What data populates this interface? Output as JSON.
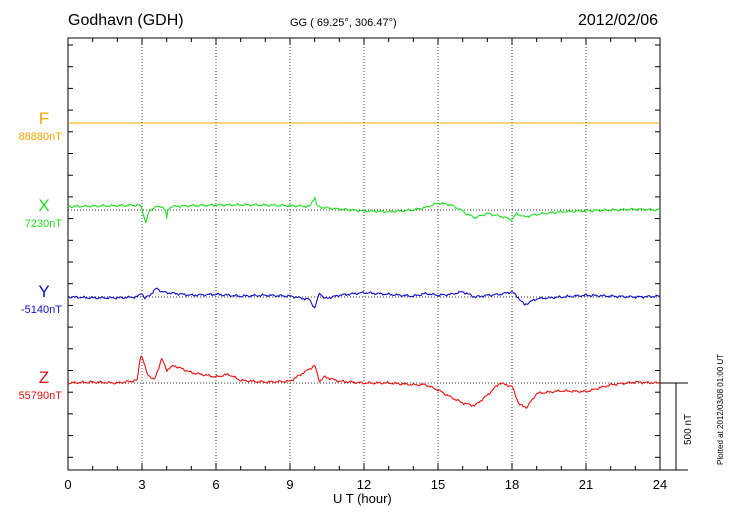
{
  "header": {
    "station": "Godhavn (GDH)",
    "coords": "GG ( 69.25°, 306.47°)",
    "date": "2012/02/06"
  },
  "footer": {
    "plotted": "Plotted at 2012/03/08 01:00 UT"
  },
  "colors": {
    "F": "#f5a300",
    "X": "#22dd22",
    "Y": "#1010cc",
    "Z": "#ee1111"
  },
  "chart_data": {
    "type": "line",
    "title": "Godhavn (GDH)",
    "xlabel": "U T (hour)",
    "xlim": [
      0,
      24
    ],
    "xticks": [
      "0",
      "3",
      "6",
      "9",
      "12",
      "15",
      "18",
      "21",
      "24"
    ],
    "grid": "vertical dotted at each 3 hours",
    "scale_bar": "500 nT",
    "series": [
      {
        "name": "F",
        "baseline_label": "88880nT",
        "x": [
          0,
          24
        ],
        "y": [
          0,
          0
        ]
      },
      {
        "name": "X",
        "baseline_label": "7230nT",
        "x": [
          0,
          1,
          2,
          2.9,
          3.0,
          3.05,
          3.15,
          3.3,
          3.5,
          3.8,
          3.95,
          4.0,
          4.05,
          4.2,
          5,
          6,
          7,
          8,
          9,
          9.8,
          10.0,
          10.1,
          10.3,
          11,
          12,
          13,
          14,
          14.5,
          15,
          15.5,
          15.8,
          16.2,
          16.5,
          17,
          17.5,
          18,
          18.2,
          18.5,
          19,
          20,
          21,
          22,
          23,
          24
        ],
        "y": [
          20,
          22,
          25,
          28,
          10,
          -20,
          -75,
          -5,
          15,
          22,
          -5,
          -50,
          5,
          20,
          25,
          28,
          30,
          28,
          25,
          20,
          75,
          20,
          15,
          5,
          -5,
          -10,
          0,
          15,
          40,
          30,
          10,
          -25,
          -45,
          -20,
          -35,
          -55,
          -20,
          -40,
          -25,
          -10,
          -5,
          0,
          5,
          0
        ]
      },
      {
        "name": "Y",
        "baseline_label": "-5140nT",
        "x": [
          0,
          1,
          2,
          2.8,
          3.0,
          3.1,
          3.3,
          3.6,
          3.8,
          4.0,
          5,
          6,
          7,
          8,
          9,
          9.8,
          10.0,
          10.2,
          10.4,
          11,
          12,
          13,
          14,
          14.5,
          15,
          15.5,
          16,
          16.5,
          17,
          17.5,
          18,
          18.2,
          18.5,
          19,
          20,
          21,
          22,
          23,
          24
        ],
        "y": [
          0,
          -5,
          -5,
          0,
          25,
          -10,
          10,
          50,
          30,
          25,
          10,
          15,
          5,
          10,
          5,
          -15,
          -65,
          25,
          -10,
          10,
          25,
          15,
          5,
          20,
          10,
          15,
          30,
          0,
          10,
          15,
          30,
          5,
          -45,
          -10,
          0,
          10,
          5,
          0,
          5
        ]
      },
      {
        "name": "Z",
        "baseline_label": "55790nT",
        "x": [
          0,
          1,
          2,
          2.8,
          2.95,
          3.05,
          3.2,
          3.5,
          3.8,
          4.0,
          4.3,
          5,
          6,
          6.5,
          7,
          8,
          9,
          10.0,
          10.2,
          10.4,
          11,
          12,
          13,
          14,
          14.5,
          15,
          15.5,
          16,
          16.5,
          17,
          17.5,
          18,
          18.3,
          18.6,
          19,
          20,
          21,
          22,
          23,
          24
        ],
        "y": [
          0,
          5,
          0,
          15,
          165,
          130,
          55,
          15,
          140,
          75,
          100,
          60,
          35,
          50,
          15,
          5,
          10,
          100,
          10,
          35,
          10,
          0,
          0,
          -10,
          -10,
          -40,
          -80,
          -115,
          -130,
          -70,
          0,
          -20,
          -125,
          -140,
          -60,
          -45,
          -50,
          -10,
          5,
          0
        ]
      }
    ]
  }
}
